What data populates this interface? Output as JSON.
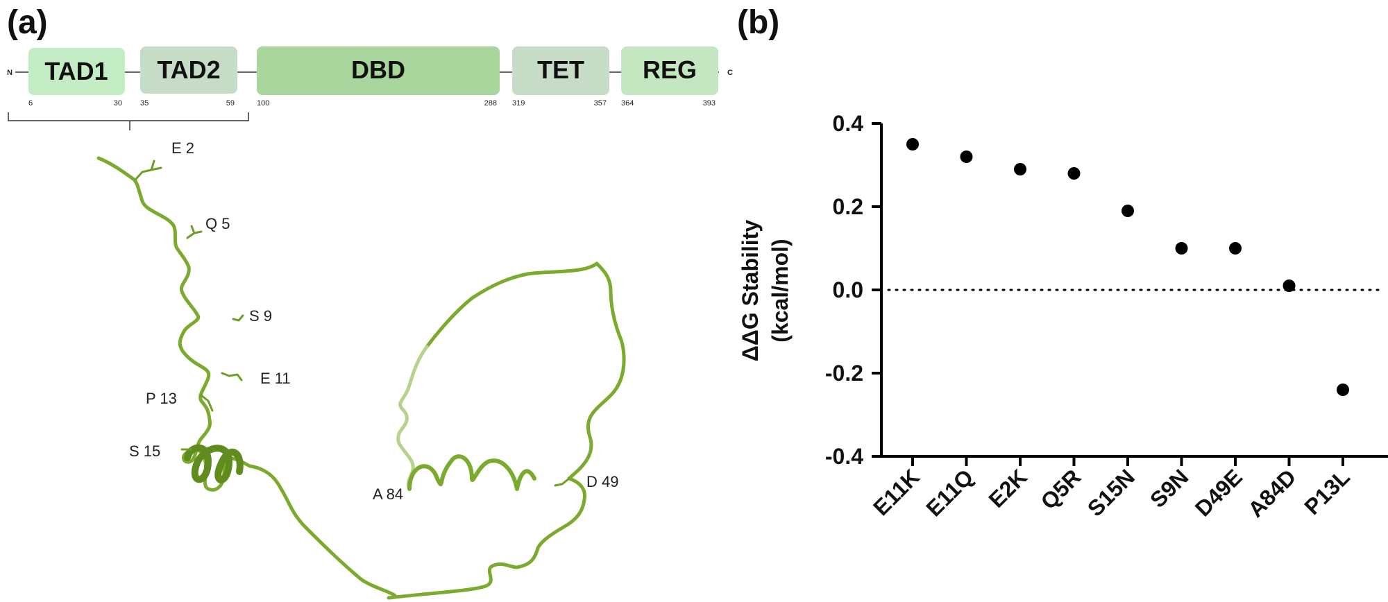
{
  "panel_a": {
    "label": "(a)",
    "n_terminus": "N",
    "c_terminus": "C",
    "domains": [
      {
        "name": "TAD1",
        "start": "6",
        "end": "30",
        "color": "#c4ecc4"
      },
      {
        "name": "TAD2",
        "start": "35",
        "end": "59",
        "color": "#c6dcc6"
      },
      {
        "name": "DBD",
        "start": "100",
        "end": "288",
        "color": "#a9d69c"
      },
      {
        "name": "TET",
        "start": "319",
        "end": "357",
        "color": "#c6dcc6"
      },
      {
        "name": "REG",
        "start": "364",
        "end": "393",
        "color": "#c4e6c0"
      }
    ],
    "structure_color": "#7bab2e",
    "residues": [
      "E 2",
      "Q 5",
      "S 9",
      "E 11",
      "P 13",
      "S 15",
      "A 84",
      "D 49"
    ]
  },
  "panel_b": {
    "label": "(b)"
  },
  "chart_data": {
    "type": "scatter",
    "title": "",
    "ylabel_line1": "ΔΔG Stability",
    "ylabel_line2": "(kcal/mol)",
    "xlabel": "",
    "categories": [
      "E11K",
      "E11Q",
      "E2K",
      "Q5R",
      "S15N",
      "S9N",
      "D49E",
      "A84D",
      "P13L"
    ],
    "values": [
      0.35,
      0.32,
      0.29,
      0.28,
      0.19,
      0.1,
      0.1,
      0.01,
      -0.24
    ],
    "ylim": [
      -0.4,
      0.4
    ],
    "yticks": [
      "0.4",
      "0.2",
      "0.0",
      "-0.2",
      "-0.4"
    ],
    "reference_line": 0.0,
    "marker_color": "#000000"
  }
}
